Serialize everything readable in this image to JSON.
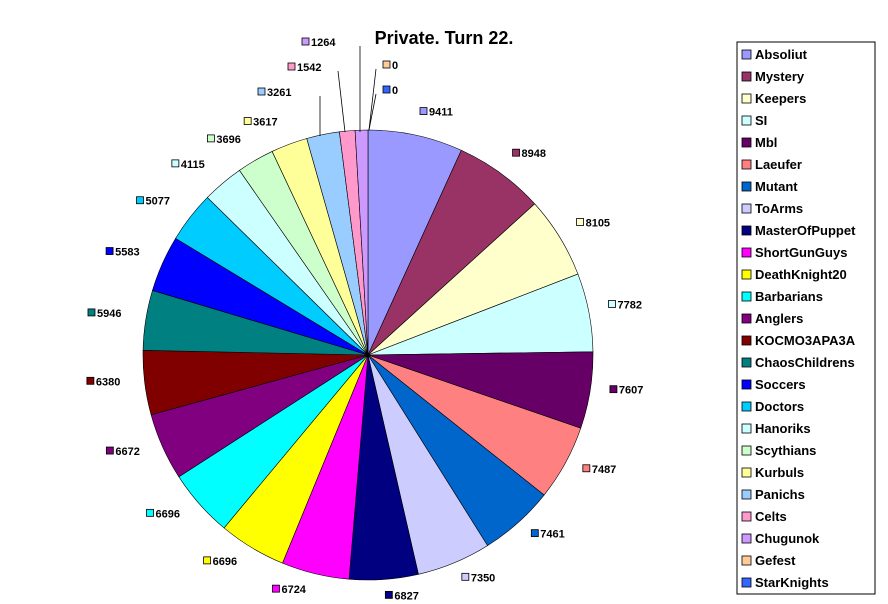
{
  "chart_data": {
    "type": "pie",
    "title": "Private. Turn 22.",
    "legend_position": "right",
    "slices": [
      {
        "name": "Absoliut",
        "value": 9411,
        "color": "#9999FF"
      },
      {
        "name": "Mystery",
        "value": 8948,
        "color": "#993366"
      },
      {
        "name": "Keepers",
        "value": 8105,
        "color": "#FFFFCC"
      },
      {
        "name": "SI",
        "value": 7782,
        "color": "#CCFFFF"
      },
      {
        "name": "Mbl",
        "value": 7607,
        "color": "#660066"
      },
      {
        "name": "Laeufer",
        "value": 7487,
        "color": "#FF8080"
      },
      {
        "name": "Mutant",
        "value": 7461,
        "color": "#0066CC"
      },
      {
        "name": "ToArms",
        "value": 7350,
        "color": "#CCCCFF"
      },
      {
        "name": "MasterOfPuppet",
        "value": 6827,
        "color": "#000080"
      },
      {
        "name": "ShortGunGuys",
        "value": 6724,
        "color": "#FF00FF"
      },
      {
        "name": "DeathKnight20",
        "value": 6696,
        "color": "#FFFF00"
      },
      {
        "name": "Barbarians",
        "value": 6696,
        "color": "#00FFFF"
      },
      {
        "name": "Anglers",
        "value": 6672,
        "color": "#800080"
      },
      {
        "name": "KOCMO3APA3A",
        "value": 6380,
        "color": "#800000"
      },
      {
        "name": "ChaosChildrens",
        "value": 5946,
        "color": "#008080"
      },
      {
        "name": "Soccers",
        "value": 5583,
        "color": "#0000FF"
      },
      {
        "name": "Doctors",
        "value": 5077,
        "color": "#00CCFF"
      },
      {
        "name": "Hanoriks",
        "value": 4115,
        "color": "#CCFFFF"
      },
      {
        "name": "Scythians",
        "value": 3696,
        "color": "#CCFFCC"
      },
      {
        "name": "Kurbuls",
        "value": 3617,
        "color": "#FFFF99"
      },
      {
        "name": "Panichs",
        "value": 3261,
        "color": "#99CCFF"
      },
      {
        "name": "Celts",
        "value": 1542,
        "color": "#FF99CC"
      },
      {
        "name": "Chugunok",
        "value": 1264,
        "color": "#CC99FF"
      },
      {
        "name": "Gefest",
        "value": 0,
        "color": "#FFCC99"
      },
      {
        "name": "StarKnights",
        "value": 0,
        "color": "#3366FF"
      }
    ]
  }
}
